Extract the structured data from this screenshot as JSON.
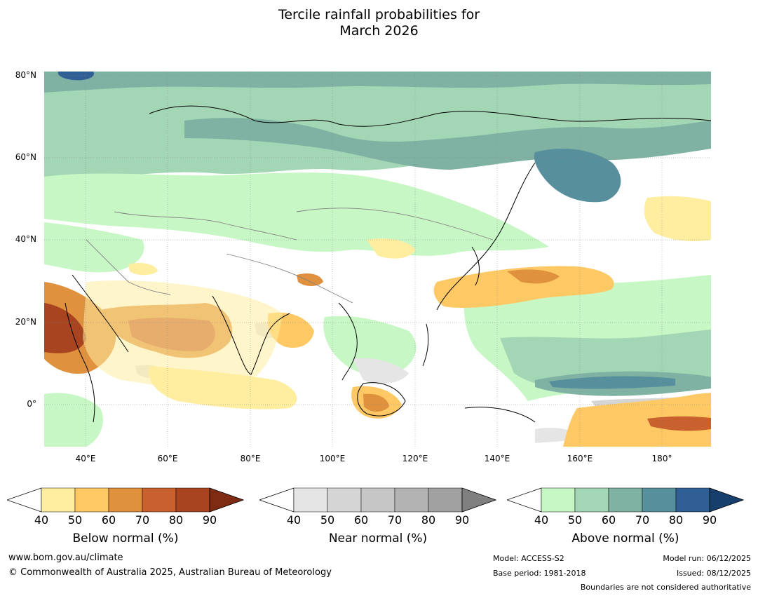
{
  "title": {
    "line1": "Tercile rainfall probabilities for",
    "line2": "March 2026"
  },
  "map": {
    "lat_labels": [
      "80°N",
      "60°N",
      "40°N",
      "20°N",
      "0°"
    ],
    "lon_labels": [
      "40°E",
      "60°E",
      "80°E",
      "100°E",
      "120°E",
      "140°E",
      "160°E",
      "180°"
    ],
    "lat_range": [
      -10,
      81
    ],
    "lon_range": [
      30,
      192
    ]
  },
  "colorbars": {
    "tick_labels": [
      "40",
      "50",
      "60",
      "70",
      "80",
      "90"
    ],
    "below": {
      "title": "Below normal (%)",
      "colors": [
        "#ffeda0",
        "#fec965",
        "#e0913e",
        "#c9612f",
        "#a8441f",
        "#7f2a12"
      ]
    },
    "near": {
      "title": "Near normal (%)",
      "colors": [
        "#e5e5e5",
        "#d5d5d5",
        "#c6c6c6",
        "#b3b3b3",
        "#a1a1a1",
        "#808080"
      ]
    },
    "above": {
      "title": "Above normal (%)",
      "colors": [
        "#c7f7c4",
        "#a3d6b4",
        "#7fb2a3",
        "#578f9c",
        "#2f5f94",
        "#163f6e"
      ]
    }
  },
  "footer": {
    "website": "www.bom.gov.au/climate",
    "copyright": "© Commonwealth of Australia 2025, Australian Bureau of Meteorology",
    "model": "Model: ACCESS-S2",
    "base_period": "Base period: 1981-2018",
    "model_run": "Model run: 06/12/2025",
    "issued": "Issued: 08/12/2025",
    "disclaimer": "Boundaries are not considered authoritative"
  }
}
